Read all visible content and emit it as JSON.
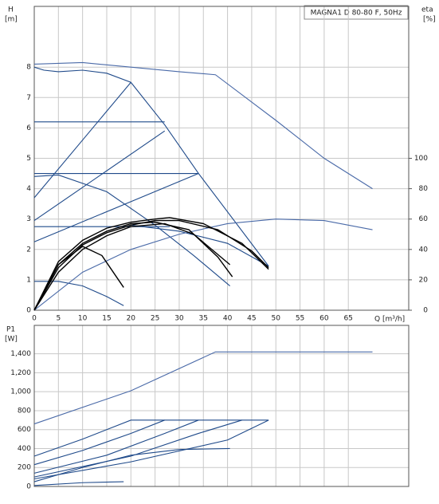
{
  "chart_data": [
    {
      "type": "line",
      "title": "MAGNA1 D 80-80 F, 50Hz",
      "y_label": "H",
      "y_unit": "[m]",
      "y2_label": "eta",
      "y2_unit": "[%]",
      "x_label": "Q [m³/h]",
      "xlim": [
        0,
        77.5
      ],
      "xticks": [
        0,
        5,
        10,
        15,
        20,
        25,
        30,
        35,
        40,
        45,
        50,
        55,
        60,
        65
      ],
      "ylim": [
        0,
        10
      ],
      "yticks": [
        0,
        1,
        2,
        3,
        4,
        5,
        6,
        7,
        8
      ],
      "y2lim": [
        0,
        200
      ],
      "y2ticks": [
        0,
        20,
        40,
        60,
        80,
        100
      ],
      "grid": true,
      "series": [
        {
          "color": "#1f4a8a",
          "x": [
            0,
            2,
            5,
            10,
            15,
            20,
            27,
            34,
            48.5
          ],
          "values": [
            8.0,
            7.9,
            7.85,
            7.9,
            7.8,
            7.5,
            6.1,
            4.5,
            1.45
          ]
        },
        {
          "color": "#1f4a8a",
          "x": [
            0,
            27
          ],
          "values": [
            6.2,
            6.2
          ]
        },
        {
          "color": "#1f4a8a",
          "x": [
            0,
            34
          ],
          "values": [
            4.5,
            4.5
          ]
        },
        {
          "color": "#1f4a8a",
          "x": [
            0,
            28
          ],
          "values": [
            2.75,
            2.75
          ]
        },
        {
          "color": "#1f4a8a",
          "x": [
            0,
            20
          ],
          "values": [
            3.7,
            7.5
          ]
        },
        {
          "color": "#1f4a8a",
          "x": [
            0,
            27
          ],
          "values": [
            2.95,
            5.9
          ]
        },
        {
          "color": "#1f4a8a",
          "x": [
            0,
            34
          ],
          "values": [
            2.25,
            4.5
          ]
        },
        {
          "color": "#1f4a8a",
          "x": [
            0,
            5,
            15,
            25,
            33,
            40.5
          ],
          "values": [
            4.4,
            4.45,
            3.9,
            2.8,
            1.8,
            0.8
          ]
        },
        {
          "color": "#1f4a8a",
          "x": [
            0,
            5,
            10,
            15,
            18.5
          ],
          "values": [
            0.95,
            0.95,
            0.8,
            0.45,
            0.15
          ]
        },
        {
          "color": "#1f4a8a",
          "x": [
            20,
            30,
            40,
            48.5
          ],
          "values": [
            2.8,
            2.6,
            2.2,
            1.45
          ]
        },
        {
          "color": "#4a6aa8",
          "axis": "y2",
          "x": [
            0,
            10,
            20,
            30,
            37.5,
            50,
            60,
            70
          ],
          "values": [
            162,
            163,
            160,
            157,
            155,
            125,
            100,
            80
          ]
        },
        {
          "color": "#4a6aa8",
          "axis": "y2",
          "x": [
            0,
            10,
            20,
            30,
            40,
            50,
            60,
            70
          ],
          "values": [
            0,
            25,
            40,
            50,
            57,
            60,
            59,
            53
          ]
        },
        {
          "color": "#000000",
          "axis": "y2",
          "x": [
            0,
            5,
            10,
            15,
            20,
            25,
            28,
            35,
            43,
            48.5
          ],
          "values": [
            0,
            32,
            46,
            54,
            58,
            60,
            61,
            57,
            44,
            27
          ]
        },
        {
          "color": "#000000",
          "axis": "y2",
          "x": [
            0,
            5,
            10,
            15,
            20,
            25,
            30,
            38,
            45,
            48.5
          ],
          "values": [
            0,
            28,
            43,
            51,
            56,
            59,
            59,
            53,
            39,
            28
          ]
        },
        {
          "color": "#000000",
          "axis": "y2",
          "x": [
            0,
            5,
            10,
            15,
            20,
            25,
            32,
            38,
            41
          ],
          "values": [
            0,
            30,
            44,
            52,
            57,
            58,
            53,
            35,
            22
          ]
        },
        {
          "color": "#000000",
          "axis": "y2",
          "x": [
            0,
            5,
            10,
            15,
            20,
            27,
            33,
            40.5
          ],
          "values": [
            0,
            25,
            40,
            49,
            55,
            57,
            50,
            30
          ]
        },
        {
          "color": "#000000",
          "axis": "y2",
          "x": [
            0,
            5,
            10,
            14,
            18.5
          ],
          "values": [
            0,
            30,
            42,
            36,
            15
          ]
        }
      ]
    },
    {
      "type": "line",
      "y_label": "P1",
      "y_unit": "[W]",
      "xlim": [
        0,
        77.5
      ],
      "ylim": [
        0,
        1700
      ],
      "yticks": [
        0,
        200,
        400,
        600,
        800,
        {
          "value": 1000,
          "label": "1,000"
        },
        {
          "value": 1200,
          "label": "1,200"
        },
        {
          "value": 1400,
          "label": "1,400"
        }
      ],
      "grid": true,
      "series": [
        {
          "color": "#4a6aa8",
          "x": [
            0,
            20,
            37.5,
            70
          ],
          "values": [
            660,
            1010,
            1420,
            1420
          ]
        },
        {
          "color": "#1f4a8a",
          "x": [
            0,
            10,
            20,
            48.5
          ],
          "values": [
            320,
            500,
            700,
            700
          ]
        },
        {
          "color": "#1f4a8a",
          "x": [
            0,
            10,
            20,
            27
          ],
          "values": [
            230,
            380,
            560,
            700
          ]
        },
        {
          "color": "#1f4a8a",
          "x": [
            0,
            15,
            27,
            34
          ],
          "values": [
            140,
            330,
            560,
            700
          ]
        },
        {
          "color": "#1f4a8a",
          "x": [
            0,
            20,
            34,
            43
          ],
          "values": [
            100,
            320,
            560,
            700
          ]
        },
        {
          "color": "#1f4a8a",
          "x": [
            0,
            20,
            40,
            48.5
          ],
          "values": [
            80,
            260,
            490,
            700
          ]
        },
        {
          "color": "#1f4a8a",
          "x": [
            0,
            10,
            20,
            30,
            40.5
          ],
          "values": [
            50,
            200,
            330,
            390,
            400
          ]
        },
        {
          "color": "#1f4a8a",
          "x": [
            0,
            10,
            18.5
          ],
          "values": [
            10,
            40,
            50
          ]
        }
      ]
    }
  ]
}
